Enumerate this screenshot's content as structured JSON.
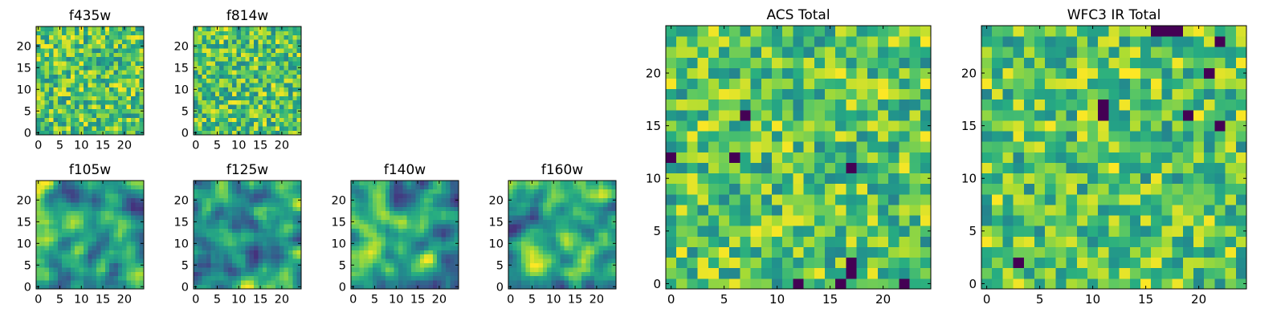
{
  "chart_data": [
    {
      "type": "heatmap",
      "title": "f435w",
      "grid_size": 25,
      "xlim": [
        0,
        24
      ],
      "ylim": [
        0,
        24
      ],
      "x_ticks": [
        0,
        5,
        10,
        15,
        20
      ],
      "y_ticks": [
        0,
        5,
        10,
        15,
        20
      ],
      "colormap": "viridis",
      "texture": "pixel-noise",
      "seed": 11,
      "dark_pixels": []
    },
    {
      "type": "heatmap",
      "title": "f814w",
      "grid_size": 25,
      "xlim": [
        0,
        24
      ],
      "ylim": [
        0,
        24
      ],
      "x_ticks": [
        0,
        5,
        10,
        15,
        20
      ],
      "y_ticks": [
        0,
        5,
        10,
        15,
        20
      ],
      "colormap": "viridis",
      "texture": "pixel-noise",
      "seed": 23,
      "dark_pixels": []
    },
    {
      "type": "heatmap",
      "title": "f105w",
      "grid_size": 25,
      "xlim": [
        0,
        24
      ],
      "ylim": [
        0,
        24
      ],
      "x_ticks": [
        0,
        5,
        10,
        15,
        20
      ],
      "y_ticks": [
        0,
        5,
        10,
        15,
        20
      ],
      "colormap": "viridis",
      "texture": "smooth",
      "seed": 37,
      "dark_pixels": []
    },
    {
      "type": "heatmap",
      "title": "f125w",
      "grid_size": 25,
      "xlim": [
        0,
        24
      ],
      "ylim": [
        0,
        24
      ],
      "x_ticks": [
        0,
        5,
        10,
        15,
        20
      ],
      "y_ticks": [
        0,
        5,
        10,
        15,
        20
      ],
      "colormap": "viridis",
      "texture": "smooth",
      "seed": 41,
      "dark_pixels": []
    },
    {
      "type": "heatmap",
      "title": "f140w",
      "grid_size": 25,
      "xlim": [
        0,
        24
      ],
      "ylim": [
        0,
        24
      ],
      "x_ticks": [
        0,
        5,
        10,
        15,
        20
      ],
      "y_ticks": [
        0,
        5,
        10,
        15,
        20
      ],
      "colormap": "viridis",
      "texture": "smooth",
      "seed": 53,
      "dark_pixels": []
    },
    {
      "type": "heatmap",
      "title": "f160w",
      "grid_size": 25,
      "xlim": [
        0,
        24
      ],
      "ylim": [
        0,
        24
      ],
      "x_ticks": [
        0,
        5,
        10,
        15,
        20
      ],
      "y_ticks": [
        0,
        5,
        10,
        15,
        20
      ],
      "colormap": "viridis",
      "texture": "smooth",
      "seed": 67,
      "dark_pixels": []
    },
    {
      "type": "heatmap",
      "title": "ACS Total",
      "grid_size": 25,
      "xlim": [
        0,
        24
      ],
      "ylim": [
        0,
        24
      ],
      "x_ticks": [
        0,
        5,
        10,
        15,
        20
      ],
      "y_ticks": [
        0,
        5,
        10,
        15,
        20
      ],
      "colormap": "viridis",
      "texture": "pixel-noise",
      "seed": 71,
      "dark_pixels": [
        [
          7,
          16
        ],
        [
          6,
          12
        ],
        [
          17,
          11
        ],
        [
          0,
          12
        ],
        [
          17,
          2
        ],
        [
          17,
          1
        ],
        [
          12,
          0
        ],
        [
          16,
          0
        ],
        [
          22,
          0
        ]
      ]
    },
    {
      "type": "heatmap",
      "title": "WFC3 IR Total",
      "grid_size": 25,
      "xlim": [
        0,
        24
      ],
      "ylim": [
        0,
        24
      ],
      "x_ticks": [
        0,
        5,
        10,
        15,
        20
      ],
      "y_ticks": [
        0,
        5,
        10,
        15,
        20
      ],
      "colormap": "viridis",
      "texture": "pixel-noise",
      "seed": 89,
      "dark_pixels": [
        [
          16,
          24
        ],
        [
          17,
          24
        ],
        [
          18,
          24
        ],
        [
          22,
          23
        ],
        [
          21,
          20
        ],
        [
          11,
          17
        ],
        [
          11,
          16
        ],
        [
          19,
          16
        ],
        [
          22,
          15
        ],
        [
          3,
          2
        ]
      ]
    }
  ]
}
